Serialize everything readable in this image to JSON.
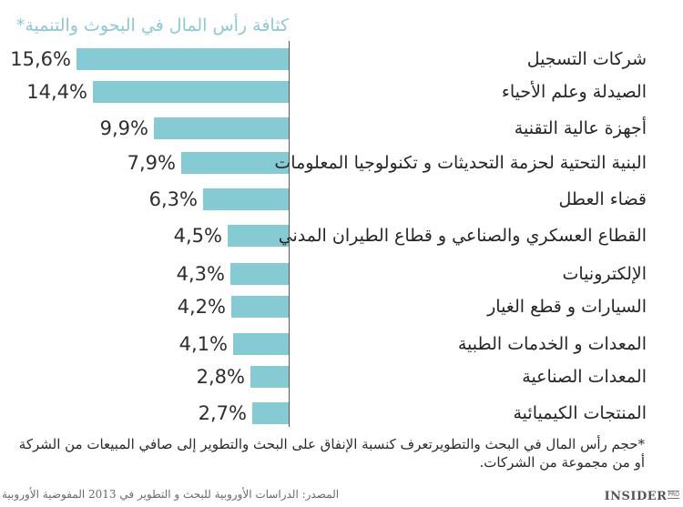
{
  "chart_data": {
    "type": "bar",
    "orientation": "horizontal",
    "title": "كثافة رأس المال في البحوث والتنمية*",
    "xlabel": "",
    "ylabel": "",
    "grid": false,
    "legend": null,
    "value_format": "percent with comma decimal separator",
    "xlim": [
      0,
      16
    ],
    "categories": [
      "شركات التسجيل",
      "الصيدلة وعلم الأحياء",
      "أجهزة عالية التقنية",
      "البنية التحتية لحزمة التحديثات و تكنولوجيا المعلومات",
      "قضاء العطل",
      "القطاع العسكري والصناعي و قطاع الطيران المدني",
      "الإلكترونيات",
      "السيارات و قطع الغيار",
      "المعدات و الخدمات الطبية",
      "المعدات الصناعية",
      "المنتجات الكيميائية"
    ],
    "values": [
      15.6,
      14.4,
      9.9,
      7.9,
      6.3,
      4.5,
      4.3,
      4.2,
      4.1,
      2.8,
      2.7
    ],
    "value_labels": [
      "15,6%",
      "14,4%",
      "9,9%",
      "7,9%",
      "6,3%",
      "4,5%",
      "4,3%",
      "4,2%",
      "4,1%",
      "2,8%",
      "2,7%"
    ],
    "bar_color": "#86cad4"
  },
  "header": {
    "title": "كثافة رأس المال في البحوث والتنمية*",
    "title_color": "#8ec9d2"
  },
  "rows": [
    {
      "label": "شركات التسجيل",
      "value": 15.6,
      "value_label": "15,6%"
    },
    {
      "label": "الصيدلة وعلم الأحياء",
      "value": 14.4,
      "value_label": "14,4%"
    },
    {
      "label": "أجهزة عالية التقنية",
      "value": 9.9,
      "value_label": "9,9%"
    },
    {
      "label": "البنية التحتية لحزمة التحديثات و تكنولوجيا المعلومات",
      "value": 7.9,
      "value_label": "7,9%"
    },
    {
      "label": "قضاء العطل",
      "value": 6.3,
      "value_label": "6,3%"
    },
    {
      "label": "القطاع العسكري والصناعي و قطاع الطيران المدني",
      "value": 4.5,
      "value_label": "4,5%"
    },
    {
      "label": "الإلكترونيات",
      "value": 4.3,
      "value_label": "4,3%"
    },
    {
      "label": "السيارات و قطع الغيار",
      "value": 4.2,
      "value_label": "4,2%"
    },
    {
      "label": "المعدات و الخدمات الطبية",
      "value": 4.1,
      "value_label": "4,1%"
    },
    {
      "label": "المعدات الصناعية",
      "value": 2.8,
      "value_label": "2,8%"
    },
    {
      "label": "المنتجات الكيميائية",
      "value": 2.7,
      "value_label": "2,7%"
    }
  ],
  "footer": {
    "footnote": "*حجم رأس المال في البحث والتطويرتعرف  كنسبة الإنفاق على البحث والتطوير إلى صافي المبيعات من الشركة أو من مجموعة من الشركات.",
    "source": "المصدر: الدراسات الأوروبية للبحث و التطوير في 2013 المفوضية الأوروبية",
    "logo_main": "INSIDER",
    "logo_sub": "PRO"
  }
}
